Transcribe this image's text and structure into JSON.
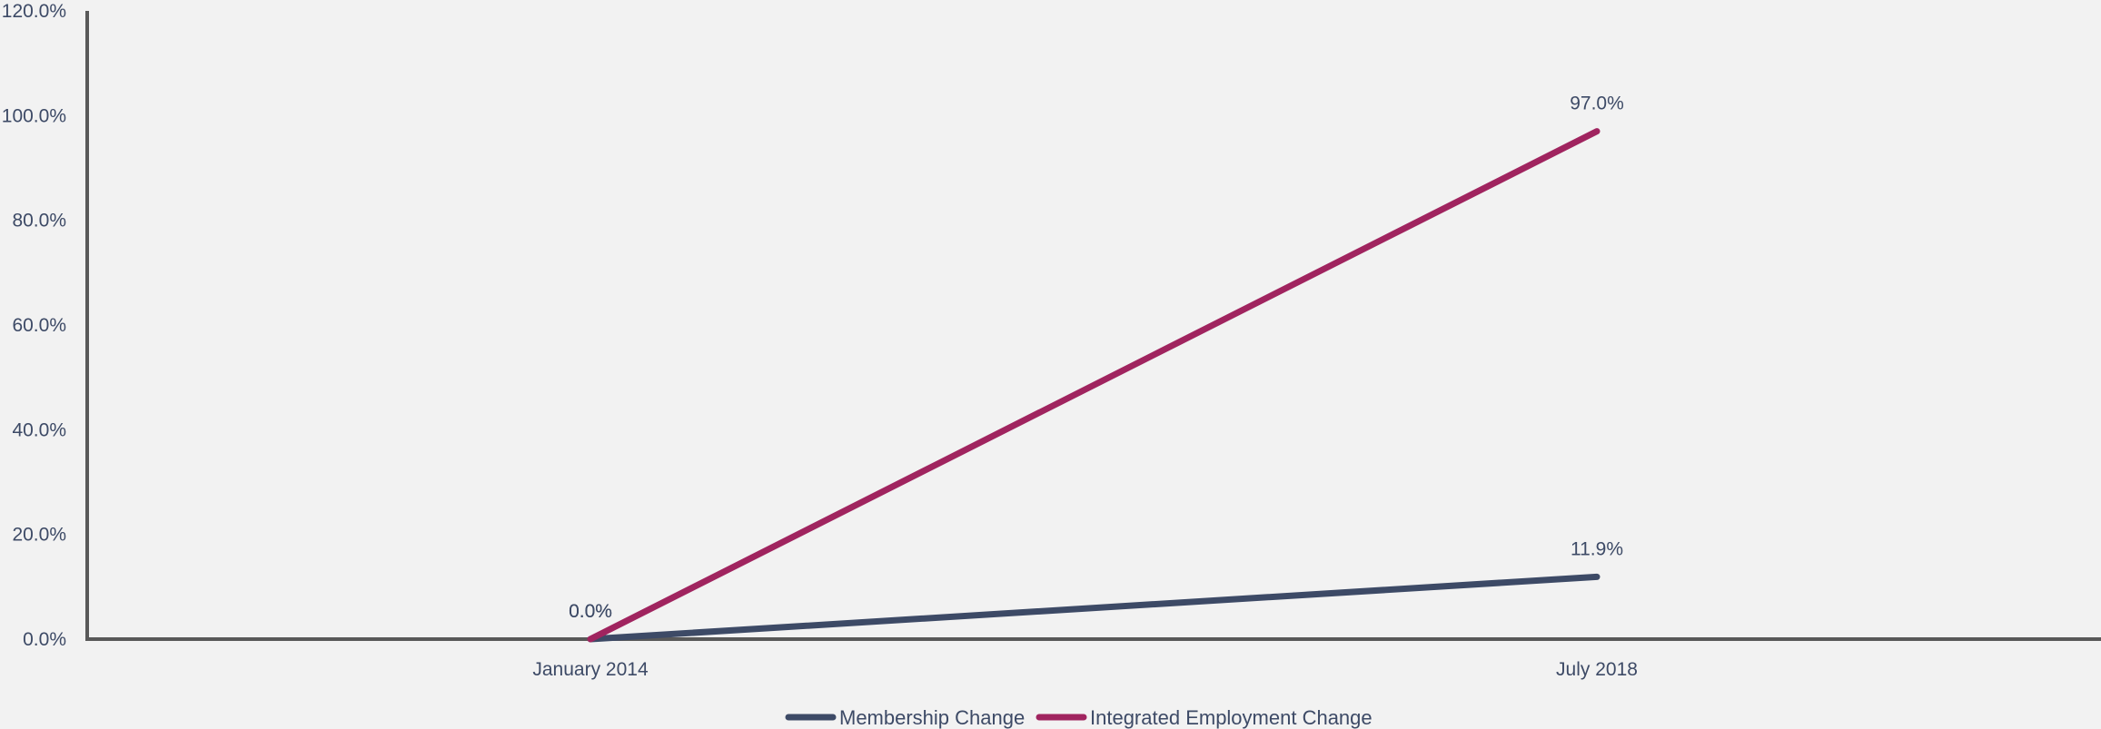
{
  "chart_data": {
    "type": "line",
    "title": "",
    "xlabel": "",
    "ylabel": "",
    "categories": [
      "January 2014",
      "July 2018"
    ],
    "series": [
      {
        "name": "Membership Change",
        "values": [
          0.0,
          11.9
        ],
        "labels": [
          "0.0%",
          "11.9%"
        ],
        "color": "#3d4a66"
      },
      {
        "name": "Integrated Employment Change",
        "values": [
          0.0,
          97.0
        ],
        "labels": [
          "0.0%",
          "97.0%"
        ],
        "color": "#a0245f"
      }
    ],
    "ylim": [
      0,
      120
    ],
    "yticks": [
      0,
      20,
      40,
      60,
      80,
      100,
      120
    ],
    "ytick_labels": [
      "0.0%",
      "20.0%",
      "40.0%",
      "60.0%",
      "80.0%",
      "100.0%",
      "120.0%"
    ],
    "grid": false,
    "legend_position": "bottom-center",
    "axis_color": "#595959"
  }
}
